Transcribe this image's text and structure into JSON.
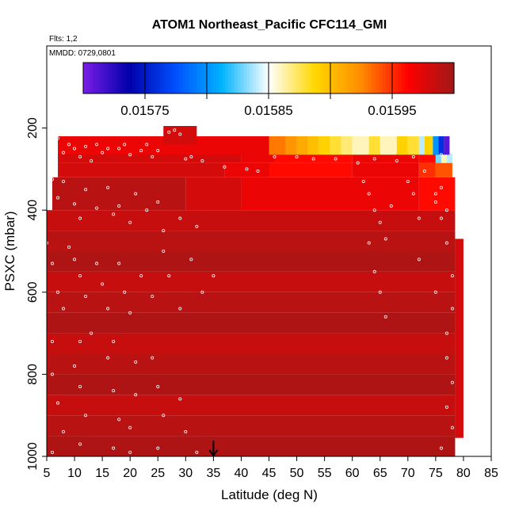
{
  "chart_data": {
    "type": "heatmap",
    "title": "ATOM1 Northeast_Pacific CFC114_GMI",
    "flights_label": "Flts: 1,2",
    "dates_label": "MMDD: 0729,0801",
    "xlabel": "Latitude (deg N)",
    "ylabel": "PSXC (mbar)",
    "xlim": [
      5,
      85
    ],
    "ylim": [
      1000,
      0
    ],
    "x_ticks": [
      5,
      10,
      15,
      20,
      25,
      30,
      35,
      40,
      45,
      50,
      55,
      60,
      65,
      70,
      75,
      80,
      85
    ],
    "y_ticks": [
      200,
      400,
      600,
      800,
      1000
    ],
    "colorbar": {
      "range": [
        0.0157,
        0.016
      ],
      "tick_labels": [
        "0.01575",
        "0.01585",
        "0.01595"
      ],
      "tick_values": [
        0.01575,
        0.01585,
        0.01595
      ],
      "divisions": [
        0.01575,
        0.0158,
        0.01585,
        0.0159,
        0.01595
      ],
      "colors": [
        "#7a1ee6",
        "#0000aa",
        "#0050ff",
        "#00b4ff",
        "#ffffff",
        "#ffd700",
        "#ff8c00",
        "#ff0000",
        "#a01818"
      ]
    },
    "arrow_marker": {
      "latitude": 35,
      "pressure": 1000
    },
    "upper_layer": {
      "p_top": 220,
      "p_bottom": 265,
      "segments": [
        {
          "lat0": 7,
          "lat1": 45,
          "value": 0.01597
        },
        {
          "lat0": 45,
          "lat1": 48,
          "value": 0.01593
        },
        {
          "lat0": 48,
          "lat1": 50,
          "value": 0.01592
        },
        {
          "lat0": 50,
          "lat1": 52,
          "value": 0.01591
        },
        {
          "lat0": 52,
          "lat1": 54,
          "value": 0.0159
        },
        {
          "lat0": 54,
          "lat1": 56,
          "value": 0.01589
        },
        {
          "lat0": 56,
          "lat1": 58,
          "value": 0.01588
        },
        {
          "lat0": 58,
          "lat1": 60,
          "value": 0.01587
        },
        {
          "lat0": 60,
          "lat1": 63,
          "value": 0.01586
        },
        {
          "lat0": 63,
          "lat1": 65,
          "value": 0.01588
        },
        {
          "lat0": 65,
          "lat1": 68,
          "value": 0.01586
        },
        {
          "lat0": 68,
          "lat1": 70,
          "value": 0.01589
        },
        {
          "lat0": 70,
          "lat1": 72,
          "value": 0.01588
        },
        {
          "lat0": 72,
          "lat1": 73,
          "value": 0.01584
        },
        {
          "lat0": 73,
          "lat1": 74.5,
          "value": 0.01589
        },
        {
          "lat0": 74.5,
          "lat1": 75.5,
          "value": 0.0158
        },
        {
          "lat0": 75.5,
          "lat1": 76.5,
          "value": 0.01576
        },
        {
          "lat0": 76.5,
          "lat1": 77.5,
          "value": 0.01571
        }
      ]
    },
    "top_cap": {
      "lat0": 26,
      "lat1": 32,
      "p_top": 195,
      "p_bottom": 240,
      "value": 0.01598
    },
    "second_layer": {
      "p_top": 262,
      "p_bottom": 285,
      "segments": [
        {
          "lat0": 7,
          "lat1": 40,
          "value": 0.01598
        },
        {
          "lat0": 40,
          "lat1": 46,
          "value": 0.01597
        },
        {
          "lat0": 46,
          "lat1": 60,
          "value": 0.01596
        },
        {
          "lat0": 60,
          "lat1": 72,
          "value": 0.01597
        },
        {
          "lat0": 72,
          "lat1": 75,
          "value": 0.01596
        },
        {
          "lat0": 75,
          "lat1": 76,
          "value": 0.01583
        },
        {
          "lat0": 76,
          "lat1": 77,
          "value": 0.01586
        },
        {
          "lat0": 77,
          "lat1": 78,
          "value": 0.01584
        }
      ]
    },
    "third_layer": {
      "p_top": 285,
      "p_bottom": 320,
      "segments": [
        {
          "lat0": 7,
          "lat1": 37,
          "value": 0.01598
        },
        {
          "lat0": 37,
          "lat1": 45,
          "value": 0.01597
        },
        {
          "lat0": 45,
          "lat1": 60,
          "value": 0.01596
        },
        {
          "lat0": 60,
          "lat1": 72,
          "value": 0.01597
        },
        {
          "lat0": 72,
          "lat1": 75,
          "value": 0.01595
        },
        {
          "lat0": 75,
          "lat1": 78,
          "value": 0.01594
        }
      ]
    },
    "fourth_layer": {
      "p_top": 320,
      "p_bottom": 400,
      "segments": [
        {
          "lat0": 6,
          "lat1": 30,
          "value": 0.01599
        },
        {
          "lat0": 30,
          "lat1": 40,
          "value": 0.01598
        },
        {
          "lat0": 40,
          "lat1": 72,
          "value": 0.01597
        },
        {
          "lat0": 72,
          "lat1": 78.5,
          "value": 0.01596
        }
      ]
    },
    "lower_region": {
      "p_top": 400,
      "p_bottom": 1000,
      "lat0": 5,
      "lat1": 78.5,
      "value": 0.01599,
      "right_extension": {
        "lat0": 78.5,
        "lat1": 80,
        "p_top": 470,
        "p_bottom": 955,
        "value": 0.01598
      }
    },
    "sample_points": [
      [
        7,
        225
      ],
      [
        8,
        260
      ],
      [
        9,
        240
      ],
      [
        10,
        250
      ],
      [
        11,
        270
      ],
      [
        12,
        245
      ],
      [
        13,
        280
      ],
      [
        14,
        240
      ],
      [
        15,
        260
      ],
      [
        16,
        250
      ],
      [
        18,
        250
      ],
      [
        19,
        240
      ],
      [
        20,
        265
      ],
      [
        22,
        255
      ],
      [
        23,
        240
      ],
      [
        24,
        270
      ],
      [
        25,
        255
      ],
      [
        27,
        210
      ],
      [
        28,
        205
      ],
      [
        29,
        215
      ],
      [
        30,
        275
      ],
      [
        31,
        270
      ],
      [
        33,
        280
      ],
      [
        37,
        295
      ],
      [
        41,
        300
      ],
      [
        43,
        305
      ],
      [
        46,
        270
      ],
      [
        50,
        270
      ],
      [
        53,
        275
      ],
      [
        57,
        275
      ],
      [
        61,
        285
      ],
      [
        64,
        275
      ],
      [
        68,
        280
      ],
      [
        71,
        270
      ],
      [
        73,
        305
      ],
      [
        76,
        265
      ],
      [
        76,
        345
      ],
      [
        75,
        380
      ],
      [
        77,
        400
      ],
      [
        6,
        325
      ],
      [
        7,
        370
      ],
      [
        8,
        330
      ],
      [
        10,
        385
      ],
      [
        11,
        420
      ],
      [
        12,
        350
      ],
      [
        14,
        395
      ],
      [
        16,
        345
      ],
      [
        17,
        410
      ],
      [
        18,
        390
      ],
      [
        20,
        430
      ],
      [
        21,
        360
      ],
      [
        23,
        400
      ],
      [
        25,
        380
      ],
      [
        26,
        450
      ],
      [
        29,
        420
      ],
      [
        32,
        440
      ],
      [
        62,
        330
      ],
      [
        63,
        360
      ],
      [
        64,
        400
      ],
      [
        65,
        430
      ],
      [
        66,
        470
      ],
      [
        67,
        390
      ],
      [
        70,
        330
      ],
      [
        71,
        360
      ],
      [
        72,
        420
      ],
      [
        75,
        360
      ],
      [
        76,
        420
      ],
      [
        5,
        480
      ],
      [
        6,
        530
      ],
      [
        7,
        600
      ],
      [
        8,
        640
      ],
      [
        9,
        490
      ],
      [
        10,
        520
      ],
      [
        11,
        560
      ],
      [
        12,
        610
      ],
      [
        13,
        700
      ],
      [
        14,
        530
      ],
      [
        15,
        580
      ],
      [
        16,
        640
      ],
      [
        17,
        720
      ],
      [
        18,
        530
      ],
      [
        19,
        600
      ],
      [
        20,
        650
      ],
      [
        22,
        560
      ],
      [
        24,
        610
      ],
      [
        26,
        500
      ],
      [
        27,
        560
      ],
      [
        29,
        640
      ],
      [
        31,
        520
      ],
      [
        33,
        600
      ],
      [
        35,
        560
      ],
      [
        63,
        480
      ],
      [
        64,
        550
      ],
      [
        65,
        600
      ],
      [
        66,
        660
      ],
      [
        72,
        520
      ],
      [
        75,
        600
      ],
      [
        77,
        480
      ],
      [
        78,
        560
      ],
      [
        78,
        640
      ],
      [
        77,
        700
      ],
      [
        77,
        760
      ],
      [
        78,
        820
      ],
      [
        77,
        880
      ],
      [
        78,
        930
      ],
      [
        76,
        980
      ],
      [
        6,
        720
      ],
      [
        6,
        800
      ],
      [
        7,
        870
      ],
      [
        8,
        940
      ],
      [
        6,
        990
      ],
      [
        11,
        720
      ],
      [
        10,
        780
      ],
      [
        11,
        830
      ],
      [
        12,
        900
      ],
      [
        11,
        970
      ],
      [
        16,
        760
      ],
      [
        17,
        840
      ],
      [
        18,
        910
      ],
      [
        17,
        980
      ],
      [
        21,
        770
      ],
      [
        21,
        850
      ],
      [
        20,
        930
      ],
      [
        20,
        990
      ],
      [
        24,
        760
      ],
      [
        25,
        830
      ],
      [
        26,
        900
      ],
      [
        25,
        980
      ],
      [
        29,
        860
      ],
      [
        30,
        940
      ],
      [
        32,
        990
      ]
    ]
  }
}
